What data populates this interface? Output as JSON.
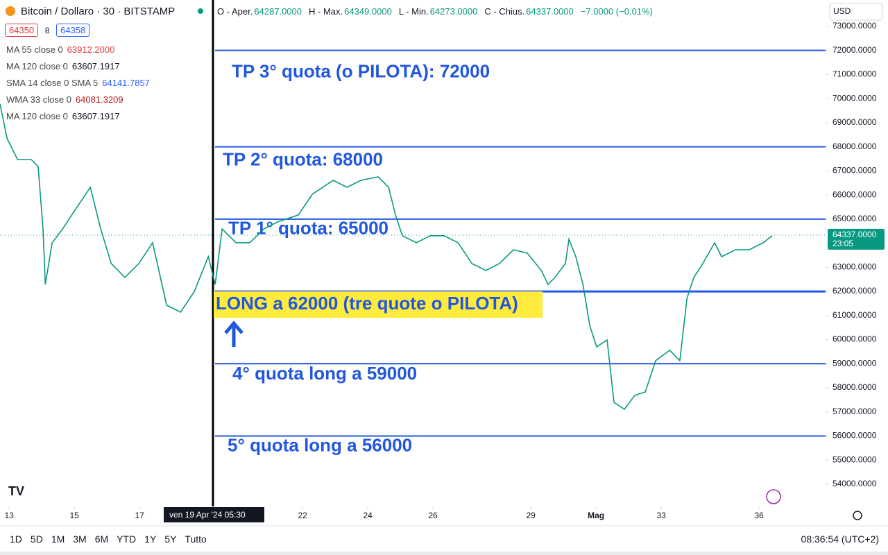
{
  "header": {
    "symbol": "Bitcoin / Dollaro · 30 · BITSTAMP",
    "ohlc": [
      [
        "O - Aper.",
        "64287.0000"
      ],
      [
        "H - Max.",
        "64349.0000"
      ],
      [
        "L - Min.",
        "64273.0000"
      ],
      [
        "C - Chius.",
        "64337.0000"
      ]
    ],
    "change": "−7.0000 (−0.01%)",
    "bid": "64350",
    "spread": "8",
    "ask": "64358",
    "currency": "USD"
  },
  "indicators": [
    {
      "name": "MA 55 close 0",
      "value": "63912.2000",
      "color": "#e53935"
    },
    {
      "name": "MA 120 close 0",
      "value": "63607.1917",
      "color": "#131722"
    },
    {
      "name": "SMA 14 close 0 SMA 5",
      "value": "64141.7857",
      "color": "#2962ff"
    },
    {
      "name": "WMA 33 close 0",
      "value": "64081.3209",
      "color": "#b71c1c"
    },
    {
      "name": "MA 120 close 0",
      "value": "63607.1917",
      "color": "#131722"
    }
  ],
  "crosshair_label": "ven 19 Apr '24   05:30",
  "toolbar": {
    "ranges": [
      "1D",
      "5D",
      "1M",
      "3M",
      "6M",
      "YTD",
      "1Y",
      "5Y",
      "Tutto"
    ],
    "clock": "08:36:54 (UTC+2)"
  },
  "chart_data": {
    "type": "line",
    "color": "#089981",
    "x": [
      12.72,
      12.94,
      13.26,
      13.68,
      13.89,
      14.04,
      14.11,
      14.32,
      14.64,
      15.06,
      15.49,
      15.81,
      16.13,
      16.55,
      16.98,
      17.4,
      17.83,
      18.26,
      18.68,
      19.11,
      19.32,
      19.53,
      19.96,
      20.38,
      20.81,
      21.23,
      21.87,
      22.3,
      22.94,
      23.36,
      23.79,
      24.32,
      24.64,
      24.85,
      25.06,
      25.49,
      25.91,
      26.34,
      26.77,
      27.19,
      27.62,
      28.04,
      28.47,
      28.89,
      29.32,
      29.53,
      29.74,
      30.06,
      30.17,
      30.38,
      30.6,
      30.81,
      31.02,
      31.34,
      31.55,
      31.87,
      32.19,
      32.51,
      32.83,
      33.26,
      33.57,
      33.79,
      34.0,
      34.21,
      34.64,
      34.85,
      35.28,
      35.7,
      36.13,
      36.4
    ],
    "values": [
      69780,
      68340,
      67470,
      67470,
      67180,
      64590,
      62290,
      64020,
      64590,
      65460,
      66320,
      64590,
      63160,
      62580,
      63160,
      64020,
      61430,
      61140,
      62000,
      63440,
      62290,
      64590,
      64020,
      64020,
      64590,
      64880,
      65170,
      66030,
      66610,
      66320,
      66610,
      66750,
      66320,
      65170,
      64310,
      64020,
      64310,
      64310,
      64020,
      63160,
      62870,
      63160,
      63730,
      63590,
      62870,
      62290,
      62580,
      63160,
      64160,
      63440,
      62290,
      60570,
      59700,
      59990,
      57400,
      57110,
      57690,
      57830,
      59130,
      59560,
      59130,
      61720,
      62580,
      63010,
      64020,
      63440,
      63730,
      63730,
      64020,
      64310
    ],
    "xlim": [
      12.72,
      38.04
    ],
    "ylim": [
      53080,
      74090
    ],
    "xticks": [
      13,
      15,
      17,
      22,
      24,
      26,
      29,
      {
        "value": 31,
        "label": "Mag"
      },
      33,
      36
    ],
    "yticks": [
      {
        "value": 73000,
        "label": "73000.0000"
      },
      {
        "value": 72000,
        "label": "72000.0000"
      },
      {
        "value": 71000,
        "label": "71000.0000"
      },
      {
        "value": 70000,
        "label": "70000.0000"
      },
      {
        "value": 69000,
        "label": "69000.0000"
      },
      {
        "value": 68000,
        "label": "68000.0000"
      },
      {
        "value": 67000,
        "label": "67000.0000"
      },
      {
        "value": 66000,
        "label": "66000.0000"
      },
      {
        "value": 65000,
        "label": "65000.0000"
      },
      {
        "value": 64000,
        "label": "64000.0000"
      },
      {
        "value": 63000,
        "label": "63000.0000"
      },
      {
        "value": 62000,
        "label": "62000.0000"
      },
      {
        "value": 61000,
        "label": "61000.0000"
      },
      {
        "value": 60000,
        "label": "60000.0000"
      },
      {
        "value": 59000,
        "label": "59000.0000"
      },
      {
        "value": 58000,
        "label": "58000.0000"
      },
      {
        "value": 57000,
        "label": "57000.0000"
      },
      {
        "value": 56000,
        "label": "56000.0000"
      },
      {
        "value": 55000,
        "label": "55000.0000"
      },
      {
        "value": 54000,
        "label": "54000.0000"
      }
    ],
    "last_price": {
      "value": 64337,
      "label": "64337.0000"
    },
    "countdown": "23:05",
    "level_color": "#2157e0",
    "levels": [
      {
        "value": 72000,
        "label": "TP 3° quota (o PILOTA): 72000"
      },
      {
        "value": 68000,
        "label": "TP 2° quota: 68000"
      },
      {
        "value": 65000,
        "label": "TP 1° quota: 65000"
      },
      {
        "value": 62000,
        "label": "LONG a 62000 (tre quote o PILOTA)"
      },
      {
        "value": 59000,
        "label": "4° quota long a 59000"
      },
      {
        "value": 56000,
        "label": "5° quota long a 56000"
      }
    ]
  }
}
